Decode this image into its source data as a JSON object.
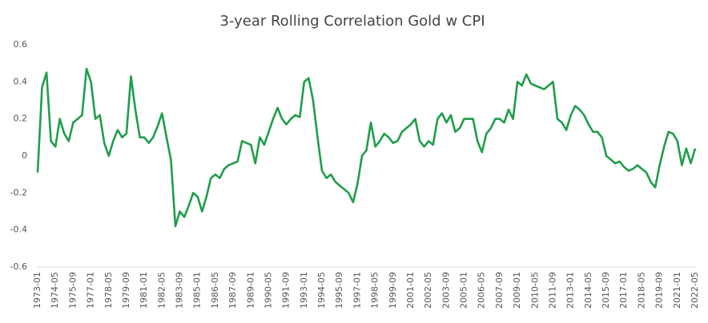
{
  "chart_data": {
    "type": "line",
    "title": "3-year Rolling Correlation Gold w CPI",
    "categories": [
      "1973-01",
      null,
      null,
      null,
      "1974-05",
      null,
      null,
      null,
      "1975-09",
      null,
      null,
      null,
      "1977-01",
      null,
      null,
      null,
      "1978-05",
      null,
      null,
      null,
      "1979-09",
      null,
      null,
      null,
      "1981-01",
      null,
      null,
      null,
      "1982-05",
      null,
      null,
      null,
      "1983-09",
      null,
      null,
      null,
      "1985-01",
      null,
      null,
      null,
      "1986-05",
      null,
      null,
      null,
      "1987-09",
      null,
      null,
      null,
      "1989-01",
      null,
      null,
      null,
      "1990-05",
      null,
      null,
      null,
      "1991-09",
      null,
      null,
      null,
      "1993-01",
      null,
      null,
      null,
      "1994-05",
      null,
      null,
      null,
      "1995-09",
      null,
      null,
      null,
      "1997-01",
      null,
      null,
      null,
      "1998-05",
      null,
      null,
      null,
      "1999-09",
      null,
      null,
      null,
      "2001-01",
      null,
      null,
      null,
      "2002-05",
      null,
      null,
      null,
      "2003-09",
      null,
      null,
      null,
      "2005-01",
      null,
      null,
      null,
      "2006-05",
      null,
      null,
      null,
      "2007-09",
      null,
      null,
      null,
      "2009-01",
      null,
      null,
      null,
      "2010-05",
      null,
      null,
      null,
      "2011-09",
      null,
      null,
      null,
      "2013-01",
      null,
      null,
      null,
      "2014-05",
      null,
      null,
      null,
      "2015-09",
      null,
      null,
      null,
      "2017-01",
      null,
      null,
      null,
      "2018-05",
      null,
      null,
      null,
      "2019-09",
      null,
      null,
      null,
      "2021-01",
      null,
      null,
      null,
      "2022-05"
    ],
    "series": [
      {
        "name": "Gold w CPI",
        "color": "#1f9e4a",
        "values": [
          -0.09,
          0.37,
          0.45,
          0.08,
          0.05,
          0.2,
          0.12,
          0.08,
          0.18,
          0.2,
          0.22,
          0.47,
          0.4,
          0.2,
          0.22,
          0.07,
          0.0,
          0.08,
          0.14,
          0.1,
          0.12,
          0.43,
          0.25,
          0.1,
          0.1,
          0.07,
          0.1,
          0.16,
          0.23,
          0.1,
          -0.02,
          -0.38,
          -0.3,
          -0.33,
          -0.27,
          -0.2,
          -0.22,
          -0.3,
          -0.22,
          -0.12,
          -0.1,
          -0.12,
          -0.07,
          -0.05,
          -0.04,
          -0.03,
          0.08,
          0.07,
          0.06,
          -0.04,
          0.1,
          0.06,
          0.13,
          0.2,
          0.26,
          0.2,
          0.17,
          0.2,
          0.22,
          0.21,
          0.4,
          0.42,
          0.3,
          0.1,
          -0.08,
          -0.12,
          -0.1,
          -0.14,
          -0.16,
          -0.18,
          -0.2,
          -0.25,
          -0.15,
          0.0,
          0.03,
          0.18,
          0.05,
          0.08,
          0.12,
          0.1,
          0.07,
          0.08,
          0.13,
          0.15,
          0.17,
          0.2,
          0.08,
          0.05,
          0.08,
          0.06,
          0.2,
          0.23,
          0.18,
          0.22,
          0.13,
          0.15,
          0.2,
          0.2,
          0.2,
          0.08,
          0.02,
          0.12,
          0.15,
          0.2,
          0.2,
          0.18,
          0.25,
          0.2,
          0.4,
          0.38,
          0.44,
          0.39,
          0.38,
          0.37,
          0.36,
          0.38,
          0.4,
          0.2,
          0.18,
          0.14,
          0.22,
          0.27,
          0.25,
          0.22,
          0.17,
          0.13,
          0.13,
          0.1,
          0.0,
          -0.02,
          -0.04,
          -0.03,
          -0.06,
          -0.08,
          -0.07,
          -0.05,
          -0.07,
          -0.09,
          -0.14,
          -0.17,
          -0.05,
          0.05,
          0.13,
          0.12,
          0.08,
          -0.05,
          0.04,
          -0.04,
          0.04
        ]
      }
    ],
    "ylim": [
      -0.6,
      0.6
    ],
    "yticks": [
      -0.6,
      -0.4,
      -0.2,
      0,
      0.2,
      0.4,
      0.6
    ],
    "grid": false
  }
}
